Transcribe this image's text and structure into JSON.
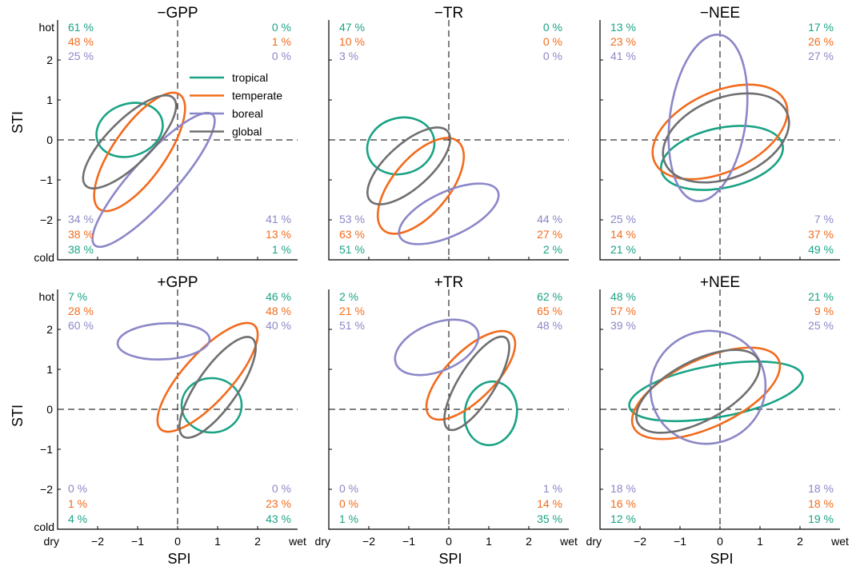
{
  "colors": {
    "tropical": "#1aa385",
    "temperate": "#f26b1d",
    "boreal": "#8b87c8",
    "global": "#6f6f6f"
  },
  "legend": [
    "tropical",
    "temperate",
    "boreal",
    "global"
  ],
  "axes": {
    "xlabel": "SPI",
    "ylabel": "STI",
    "x_end_labels": [
      "dry",
      "wet"
    ],
    "y_end_labels": [
      "cold",
      "hot"
    ],
    "x_ticks": [
      "−2",
      "−1",
      "0",
      "1",
      "2"
    ],
    "y_ticks": [
      "−2",
      "−1",
      "0",
      "1",
      "2"
    ]
  },
  "chart_data": [
    {
      "type": "scatter",
      "title": "−GPP",
      "xlim": [
        -3.0,
        3.0
      ],
      "ylim": [
        -3.0,
        3.0
      ],
      "quadrant_percent": {
        "tropical": {
          "top_left": "61 %",
          "top_right": "0 %",
          "bottom_left": "38 %",
          "bottom_right": "1 %"
        },
        "temperate": {
          "top_left": "48 %",
          "top_right": "1 %",
          "bottom_left": "38 %",
          "bottom_right": "13 %"
        },
        "boreal": {
          "top_left": "25 %",
          "top_right": "0 %",
          "bottom_left": "34 %",
          "bottom_right": "41 %"
        }
      },
      "ellipses": [
        {
          "series": "tropical",
          "cx": -1.2,
          "cy": 0.25,
          "rx": 0.85,
          "ry": 0.65,
          "angle": -20
        },
        {
          "series": "temperate",
          "cx": -0.95,
          "cy": -0.3,
          "rx": 1.75,
          "ry": 0.65,
          "angle": -55
        },
        {
          "series": "boreal",
          "cx": -0.6,
          "cy": -1.0,
          "rx": 2.2,
          "ry": 0.55,
          "angle": -48
        },
        {
          "series": "global",
          "cx": -1.2,
          "cy": -0.05,
          "rx": 1.55,
          "ry": 0.55,
          "angle": -45
        }
      ]
    },
    {
      "type": "scatter",
      "title": "−TR",
      "xlim": [
        -3.0,
        3.0
      ],
      "ylim": [
        -3.0,
        3.0
      ],
      "quadrant_percent": {
        "tropical": {
          "top_left": "47 %",
          "top_right": "0 %",
          "bottom_left": "51 %",
          "bottom_right": "2 %"
        },
        "temperate": {
          "top_left": "10 %",
          "top_right": "0 %",
          "bottom_left": "63 %",
          "bottom_right": "27 %"
        },
        "boreal": {
          "top_left": "3 %",
          "top_right": "0 %",
          "bottom_left": "53 %",
          "bottom_right": "44 %"
        }
      },
      "ellipses": [
        {
          "series": "tropical",
          "cx": -1.2,
          "cy": -0.15,
          "rx": 0.85,
          "ry": 0.7,
          "angle": -15
        },
        {
          "series": "temperate",
          "cx": -0.7,
          "cy": -1.15,
          "rx": 1.45,
          "ry": 0.7,
          "angle": -50
        },
        {
          "series": "boreal",
          "cx": 0.0,
          "cy": -1.85,
          "rx": 1.35,
          "ry": 0.55,
          "angle": -25
        },
        {
          "series": "global",
          "cx": -1.0,
          "cy": -0.65,
          "rx": 1.3,
          "ry": 0.55,
          "angle": -42
        }
      ]
    },
    {
      "type": "scatter",
      "title": "−NEE",
      "xlim": [
        -3.0,
        3.0
      ],
      "ylim": [
        -3.0,
        3.0
      ],
      "quadrant_percent": {
        "tropical": {
          "top_left": "13 %",
          "top_right": "17 %",
          "bottom_left": "21 %",
          "bottom_right": "49 %"
        },
        "temperate": {
          "top_left": "23 %",
          "top_right": "26 %",
          "bottom_left": "14 %",
          "bottom_right": "37 %"
        },
        "boreal": {
          "top_left": "41 %",
          "top_right": "27 %",
          "bottom_left": "25 %",
          "bottom_right": "7 %"
        }
      },
      "ellipses": [
        {
          "series": "tropical",
          "cx": 0.05,
          "cy": -0.45,
          "rx": 1.55,
          "ry": 0.75,
          "angle": -12
        },
        {
          "series": "temperate",
          "cx": 0.0,
          "cy": 0.2,
          "rx": 1.8,
          "ry": 1.0,
          "angle": -25
        },
        {
          "series": "boreal",
          "cx": -0.3,
          "cy": 0.55,
          "rx": 2.1,
          "ry": 0.95,
          "angle": -82
        },
        {
          "series": "global",
          "cx": 0.15,
          "cy": 0.05,
          "rx": 1.65,
          "ry": 1.0,
          "angle": -22
        }
      ]
    },
    {
      "type": "scatter",
      "title": "+GPP",
      "xlim": [
        -3.0,
        3.0
      ],
      "ylim": [
        -3.0,
        3.0
      ],
      "quadrant_percent": {
        "tropical": {
          "top_left": "7 %",
          "top_right": "46 %",
          "bottom_left": "4 %",
          "bottom_right": "43 %"
        },
        "temperate": {
          "top_left": "28 %",
          "top_right": "48 %",
          "bottom_left": "1 %",
          "bottom_right": "23 %"
        },
        "boreal": {
          "top_left": "60 %",
          "top_right": "40 %",
          "bottom_left": "0 %",
          "bottom_right": "0 %"
        }
      },
      "ellipses": [
        {
          "series": "tropical",
          "cx": 0.85,
          "cy": 0.1,
          "rx": 0.75,
          "ry": 0.68,
          "angle": 0
        },
        {
          "series": "temperate",
          "cx": 0.75,
          "cy": 0.8,
          "rx": 1.75,
          "ry": 0.6,
          "angle": -48
        },
        {
          "series": "boreal",
          "cx": -0.35,
          "cy": 1.7,
          "rx": 1.15,
          "ry": 0.45,
          "angle": -3
        },
        {
          "series": "global",
          "cx": 1.0,
          "cy": 0.55,
          "rx": 1.5,
          "ry": 0.5,
          "angle": -55
        }
      ]
    },
    {
      "type": "scatter",
      "title": "+TR",
      "xlim": [
        -3.0,
        3.0
      ],
      "ylim": [
        -3.0,
        3.0
      ],
      "quadrant_percent": {
        "tropical": {
          "top_left": "2 %",
          "top_right": "62 %",
          "bottom_left": "1 %",
          "bottom_right": "35 %"
        },
        "temperate": {
          "top_left": "21 %",
          "top_right": "65 %",
          "bottom_left": "0 %",
          "bottom_right": "14 %"
        },
        "boreal": {
          "top_left": "51 %",
          "top_right": "48 %",
          "bottom_left": "0 %",
          "bottom_right": "1 %"
        }
      },
      "ellipses": [
        {
          "series": "tropical",
          "cx": 1.05,
          "cy": -0.1,
          "rx": 0.8,
          "ry": 0.65,
          "angle": -80
        },
        {
          "series": "temperate",
          "cx": 0.55,
          "cy": 0.85,
          "rx": 1.45,
          "ry": 0.6,
          "angle": -45
        },
        {
          "series": "boreal",
          "cx": -0.3,
          "cy": 1.55,
          "rx": 1.1,
          "ry": 0.6,
          "angle": -22
        },
        {
          "series": "global",
          "cx": 0.7,
          "cy": 0.65,
          "rx": 1.35,
          "ry": 0.45,
          "angle": -58
        }
      ]
    },
    {
      "type": "scatter",
      "title": "+NEE",
      "xlim": [
        -3.0,
        3.0
      ],
      "ylim": [
        -3.0,
        3.0
      ],
      "quadrant_percent": {
        "tropical": {
          "top_left": "48 %",
          "top_right": "21 %",
          "bottom_left": "12 %",
          "bottom_right": "19 %"
        },
        "temperate": {
          "top_left": "57 %",
          "top_right": "9 %",
          "bottom_left": "16 %",
          "bottom_right": "18 %"
        },
        "boreal": {
          "top_left": "39 %",
          "top_right": "25 %",
          "bottom_left": "18 %",
          "bottom_right": "18 %"
        }
      },
      "ellipses": [
        {
          "series": "tropical",
          "cx": -0.1,
          "cy": 0.45,
          "rx": 2.2,
          "ry": 0.65,
          "angle": -10
        },
        {
          "series": "temperate",
          "cx": -0.35,
          "cy": 0.4,
          "rx": 2.0,
          "ry": 0.85,
          "angle": -25
        },
        {
          "series": "boreal",
          "cx": -0.3,
          "cy": 0.55,
          "rx": 1.45,
          "ry": 1.4,
          "angle": -30
        },
        {
          "series": "global",
          "cx": -0.55,
          "cy": 0.45,
          "rx": 1.7,
          "ry": 0.75,
          "angle": -28
        }
      ]
    }
  ]
}
